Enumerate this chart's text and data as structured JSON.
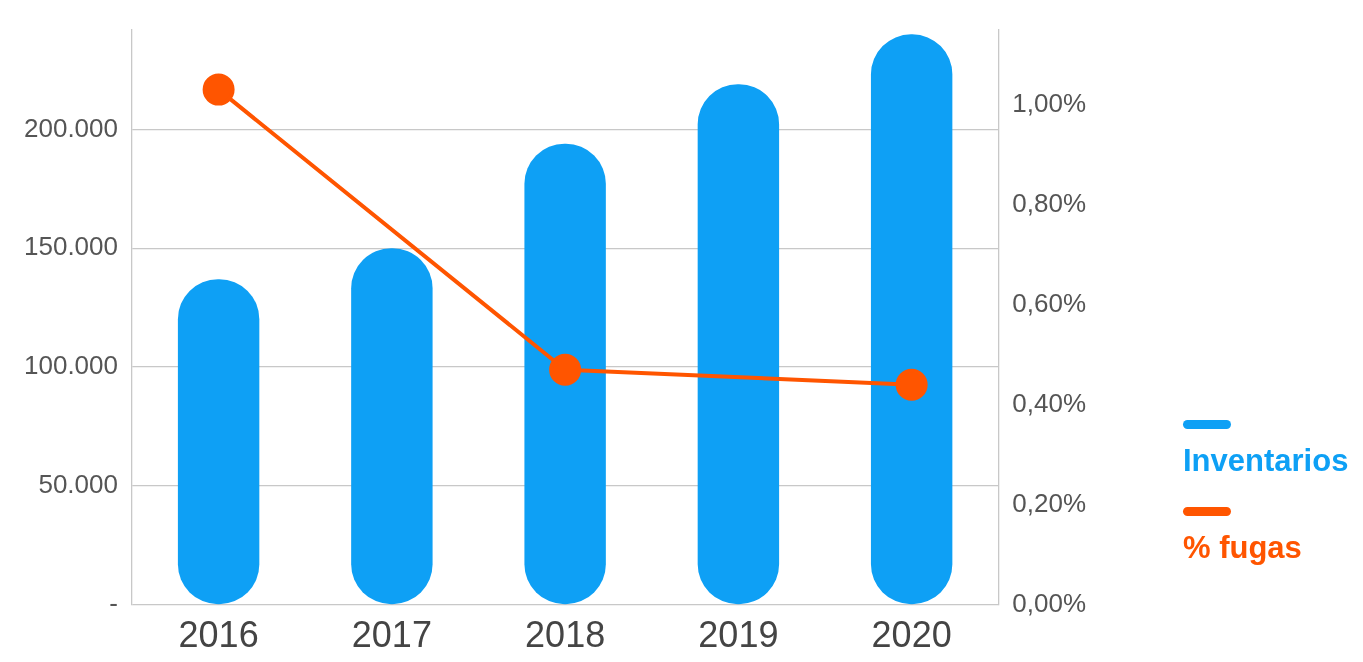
{
  "chart_data": {
    "type": "bar",
    "categories": [
      "2016",
      "2017",
      "2018",
      "2019",
      "2020"
    ],
    "series": [
      {
        "name": "Inventarios",
        "color": "#0ea0f5",
        "values": [
          137000,
          150000,
          194000,
          219000,
          240000
        ]
      },
      {
        "name": "% fugas",
        "type": "line",
        "axis": "y2",
        "color": "#ff5500",
        "values": [
          1.03,
          null,
          0.47,
          null,
          0.44
        ]
      }
    ],
    "ylim": [
      0,
      242000
    ],
    "yticks": [
      {
        "value": 0,
        "label": "-"
      },
      {
        "value": 50000,
        "label": "50.000"
      },
      {
        "value": 100000,
        "label": "100.000"
      },
      {
        "value": 150000,
        "label": "150.000"
      },
      {
        "value": 200000,
        "label": "200.000"
      }
    ],
    "y2lim": [
      0,
      1.15
    ],
    "y2ticks": [
      {
        "value": 0,
        "label": "0,00%"
      },
      {
        "value": 0.2,
        "label": "0,20%"
      },
      {
        "value": 0.4,
        "label": "0,40%"
      },
      {
        "value": 0.6,
        "label": "0,60%"
      },
      {
        "value": 0.8,
        "label": "0,80%"
      },
      {
        "value": 1,
        "label": "1,00%"
      }
    ],
    "grid": "y",
    "legend": "right",
    "marker": "circle"
  }
}
